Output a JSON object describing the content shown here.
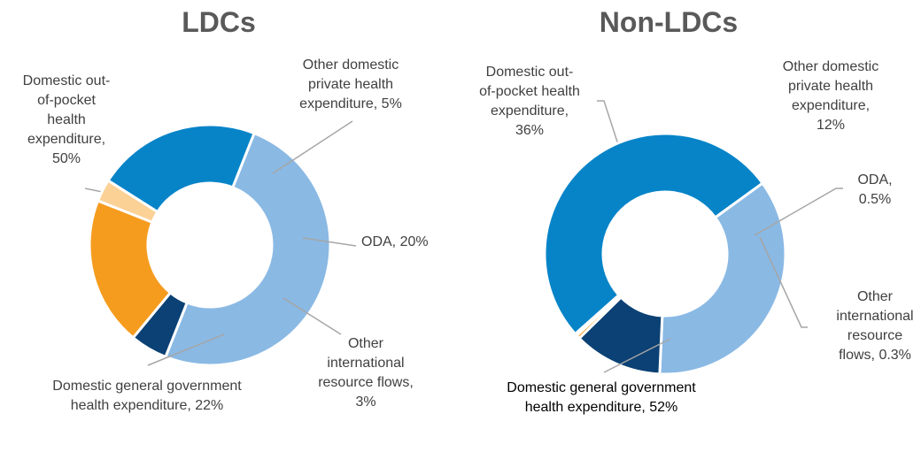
{
  "chart_data": [
    {
      "type": "pie",
      "title": "LDCs",
      "slices": [
        {
          "label": "Domestic out-of-pocket health expenditure",
          "value": 50,
          "color": "#8ab9e4",
          "label_lines": [
            "Domestic out-",
            "of-pocket",
            "health",
            "expenditure,",
            "50%"
          ]
        },
        {
          "label": "Other domestic private health expenditure",
          "value": 5,
          "color": "#0b4174",
          "label_lines": [
            "Other domestic",
            "private health",
            "expenditure, 5%"
          ]
        },
        {
          "label": "ODA",
          "value": 20,
          "color": "#f59c1f",
          "label_lines": [
            "ODA, 20%"
          ]
        },
        {
          "label": "Other international resource flows",
          "value": 3,
          "color": "#fcd196",
          "label_lines": [
            "Other",
            "international",
            "resource flows,",
            "3%"
          ]
        },
        {
          "label": "Domestic general government health expenditure",
          "value": 22,
          "color": "#0784c8",
          "label_lines": [
            "Domestic general government",
            "health expenditure, 22%"
          ]
        }
      ]
    },
    {
      "type": "pie",
      "title": "Non-LDCs",
      "slices": [
        {
          "label": "Domestic out-of-pocket health expenditure",
          "value": 36,
          "color": "#8ab9e4",
          "label_lines": [
            "Domestic out-",
            "of-pocket health",
            "expenditure,",
            "36%"
          ]
        },
        {
          "label": "Other domestic private health expenditure",
          "value": 12,
          "color": "#0b4174",
          "label_lines": [
            "Other domestic",
            "private health",
            "expenditure,",
            "12%"
          ]
        },
        {
          "label": "ODA",
          "value": 0.5,
          "color": "#f59c1f",
          "label_lines": [
            "ODA,",
            "0.5%"
          ]
        },
        {
          "label": "Other international resource flows",
          "value": 0.3,
          "color": "#fcd196",
          "label_lines": [
            "Other",
            "international",
            "resource",
            "flows, 0.3%"
          ]
        },
        {
          "label": "Domestic general government health expenditure",
          "value": 52,
          "color": "#0784c8",
          "label_lines": [
            "Domestic general government",
            "health expenditure, 52%"
          ]
        }
      ]
    }
  ]
}
